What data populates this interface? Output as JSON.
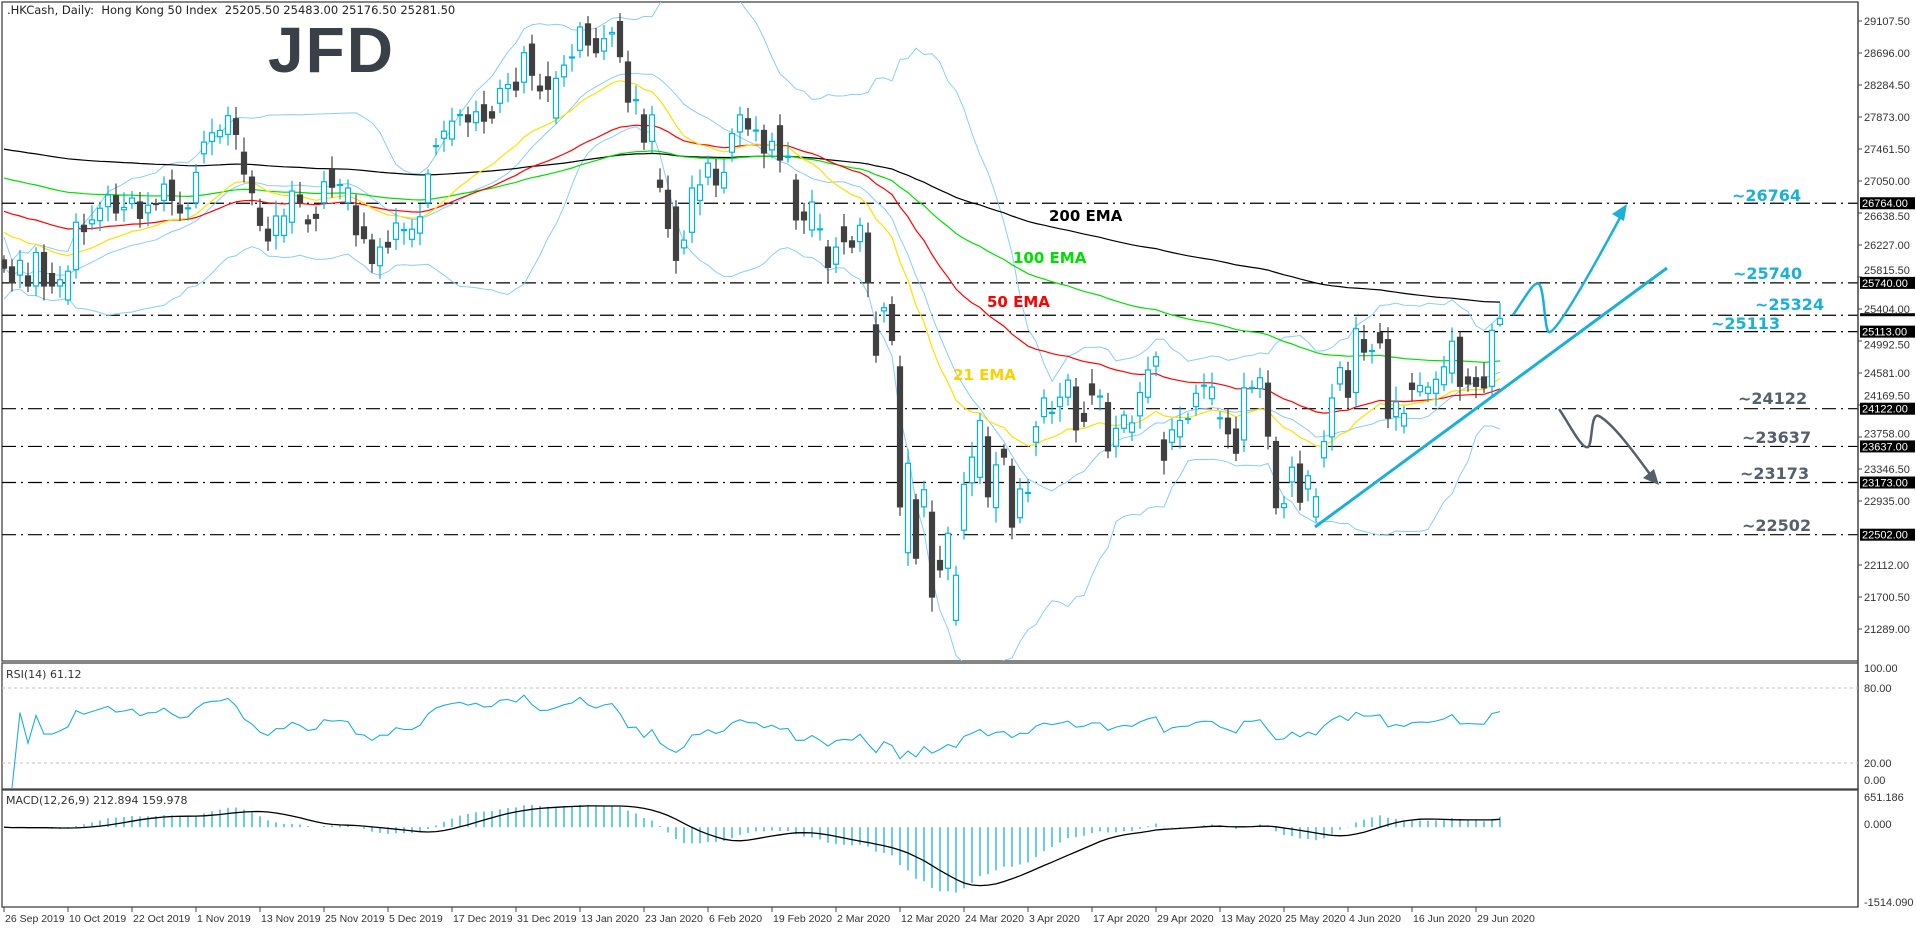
{
  "header": {
    "symbol": ".HKCash, Daily:",
    "instrument": "Hong Kong 50 Index",
    "ohlc": "25205.50 25483.00 25176.50 25281.50"
  },
  "logo": {
    "text": "JFD"
  },
  "colors": {
    "bull": "#00b4e0",
    "bear": "#404040",
    "ema21": "#ffe000",
    "ema50": "#ff0000",
    "ema100": "#00e000",
    "ema200": "#000000",
    "bollinger": "#87cefa",
    "annotation_up": "#1ab0d8",
    "annotation_down": "#56606b",
    "rsi": "#1ab0d8",
    "macd_hist": "#1ab0d8",
    "macd_signal": "#000000"
  },
  "ema_labels": {
    "ema200": "200 EMA",
    "ema100": "100 EMA",
    "ema50": "50 EMA",
    "ema21": "21 EMA"
  },
  "levels": [
    {
      "value": 26764,
      "label": "~26764",
      "axis": "26764.00",
      "tone": "up"
    },
    {
      "value": 25740,
      "label": "~25740",
      "axis": "25740.00",
      "tone": "up"
    },
    {
      "value": 25324,
      "label": "~25324",
      "axis": "",
      "tone": "up"
    },
    {
      "value": 25113,
      "label": "~25113",
      "axis": "25113.00",
      "tone": "up"
    },
    {
      "value": 24122,
      "label": "~24122",
      "axis": "24122.00",
      "tone": "down"
    },
    {
      "value": 23637,
      "label": "~23637",
      "axis": "23637.00",
      "tone": "down"
    },
    {
      "value": 23173,
      "label": "~23173",
      "axis": "23173.00",
      "tone": "down"
    },
    {
      "value": 22502,
      "label": "~22502",
      "axis": "22502.00",
      "tone": "down"
    }
  ],
  "rsi": {
    "label": "RSI(14) 61.12",
    "ticks": [
      "100.00",
      "80.00",
      "20.00",
      "0.00"
    ]
  },
  "macd": {
    "label": "MACD(12,26,9) 212.894 159.978",
    "ticks": [
      "651.186",
      "0.000",
      "-1514.090"
    ]
  },
  "chart_data": {
    "type": "candlestick",
    "title": ".HKCash, Daily: Hong Kong 50 Index",
    "price_ticks": [
      29107.5,
      28696.0,
      28284.5,
      27873.0,
      27461.5,
      27050.0,
      26638.5,
      26227.0,
      25815.5,
      25404.0,
      24992.5,
      24581.0,
      24169.5,
      23758.0,
      23346.5,
      22935.0,
      22112.0,
      21700.5,
      21289.0
    ],
    "ylim": [
      21000,
      29300
    ],
    "date_ticks": [
      "26 Sep 2019",
      "10 Oct 2019",
      "22 Oct 2019",
      "1 Nov 2019",
      "13 Nov 2019",
      "25 Nov 2019",
      "5 Dec 2019",
      "17 Dec 2019",
      "31 Dec 2019",
      "13 Jan 2020",
      "23 Jan 2020",
      "6 Feb 2020",
      "19 Feb 2020",
      "2 Mar 2020",
      "12 Mar 2020",
      "24 Mar 2020",
      "3 Apr 2020",
      "17 Apr 2020",
      "29 Apr 2020",
      "13 May 2020",
      "25 May 2020",
      "4 Jun 2020",
      "16 Jun 2020",
      "29 Jun 2020"
    ],
    "date_tick_every_bars": 8,
    "last_bar": {
      "open": 25205.5,
      "high": 25483.0,
      "low": 25176.5,
      "close": 25281.5
    },
    "open_close": [
      [
        26035,
        25930
      ],
      [
        25945,
        25740
      ],
      [
        25840,
        26030
      ],
      [
        25830,
        25700
      ],
      [
        25700,
        26130
      ],
      [
        26130,
        25700
      ],
      [
        25860,
        25700
      ],
      [
        25700,
        25780
      ],
      [
        25520,
        25890
      ],
      [
        25910,
        26520
      ],
      [
        26480,
        26400
      ],
      [
        26500,
        26550
      ],
      [
        26540,
        26700
      ],
      [
        26720,
        26870
      ],
      [
        26860,
        26640
      ],
      [
        26680,
        26710
      ],
      [
        26760,
        26830
      ],
      [
        26780,
        26570
      ],
      [
        26640,
        26740
      ],
      [
        26760,
        26755
      ],
      [
        26800,
        27010
      ],
      [
        27060,
        26800
      ],
      [
        26740,
        26640
      ],
      [
        26700,
        26705
      ],
      [
        26770,
        27160
      ],
      [
        27400,
        27550
      ],
      [
        27560,
        27670
      ],
      [
        27620,
        27700
      ],
      [
        27650,
        27890
      ],
      [
        27850,
        27650
      ],
      [
        27420,
        27140
      ],
      [
        27100,
        26900
      ],
      [
        26700,
        26480
      ],
      [
        26430,
        26280
      ],
      [
        26350,
        26600
      ],
      [
        26350,
        26600
      ],
      [
        26520,
        26920
      ],
      [
        26870,
        26770
      ],
      [
        26550,
        26500
      ],
      [
        26620,
        26570
      ],
      [
        26770,
        27040
      ],
      [
        27190,
        26970
      ],
      [
        27000,
        27005
      ],
      [
        26770,
        26960
      ],
      [
        26730,
        26360
      ],
      [
        26460,
        26310
      ],
      [
        26290,
        25990
      ],
      [
        25960,
        26200
      ],
      [
        26260,
        26200
      ],
      [
        26300,
        26510
      ],
      [
        26420,
        26425
      ],
      [
        26300,
        26430
      ],
      [
        26380,
        26590
      ],
      [
        26770,
        27140
      ],
      [
        27500,
        27505
      ],
      [
        27600,
        27690
      ],
      [
        27590,
        27820
      ],
      [
        27900,
        27905
      ],
      [
        27900,
        27810
      ],
      [
        27800,
        27940
      ],
      [
        28030,
        27820
      ],
      [
        27940,
        27860
      ],
      [
        28050,
        28240
      ],
      [
        28240,
        28290
      ],
      [
        28320,
        28220
      ],
      [
        28320,
        28700
      ],
      [
        28810,
        28410
      ],
      [
        28270,
        28210
      ],
      [
        28390,
        28230
      ],
      [
        27860,
        28370
      ],
      [
        28390,
        28540
      ],
      [
        28640,
        28645
      ],
      [
        28730,
        29030
      ],
      [
        29070,
        28800
      ],
      [
        28880,
        28700
      ],
      [
        28720,
        28880
      ],
      [
        28940,
        28960
      ],
      [
        29100,
        28650
      ],
      [
        28580,
        28065
      ],
      [
        28090,
        28095
      ],
      [
        27900,
        27550
      ],
      [
        27560,
        27900
      ],
      [
        27060,
        26970
      ],
      [
        26930,
        26440
      ],
      [
        26715,
        26030
      ],
      [
        26190,
        26290
      ],
      [
        26390,
        26960
      ],
      [
        26800,
        27000
      ],
      [
        27100,
        27280
      ],
      [
        27200,
        27000
      ],
      [
        26960,
        27160
      ],
      [
        27420,
        27660
      ],
      [
        27680,
        27900
      ],
      [
        27850,
        27720
      ],
      [
        27700,
        27705
      ],
      [
        27700,
        27410
      ],
      [
        27450,
        27560
      ],
      [
        27760,
        27320
      ],
      [
        27360,
        27365
      ],
      [
        27060,
        26550
      ],
      [
        26650,
        26550
      ],
      [
        26420,
        26780
      ],
      [
        26430,
        26435
      ],
      [
        26200,
        25940
      ],
      [
        25980,
        26200
      ],
      [
        26460,
        26270
      ],
      [
        26280,
        26200
      ],
      [
        26270,
        26480
      ],
      [
        26380,
        25740
      ],
      [
        25200,
        24810
      ],
      [
        25380,
        25420
      ],
      [
        25460,
        25000
      ],
      [
        24660,
        22860
      ],
      [
        22270,
        23420
      ],
      [
        22950,
        22200
      ],
      [
        22860,
        23080
      ],
      [
        22790,
        21700
      ],
      [
        22170,
        22050
      ],
      [
        22070,
        22520
      ],
      [
        21400,
        21980
      ],
      [
        22560,
        23150
      ],
      [
        23170,
        23500
      ],
      [
        23240,
        23970
      ],
      [
        23760,
        22990
      ],
      [
        22850,
        23400
      ],
      [
        23600,
        23500
      ],
      [
        23380,
        22600
      ],
      [
        22720,
        23090
      ],
      [
        23040,
        23045
      ],
      [
        23690,
        23890
      ],
      [
        24020,
        24260
      ],
      [
        24070,
        24075
      ],
      [
        24150,
        24270
      ],
      [
        24270,
        24490
      ],
      [
        24400,
        23850
      ],
      [
        24060,
        23960
      ],
      [
        24440,
        24300
      ],
      [
        24280,
        24285
      ],
      [
        24200,
        23580
      ],
      [
        23640,
        23870
      ],
      [
        23870,
        24040
      ],
      [
        23820,
        23940
      ],
      [
        24030,
        24330
      ],
      [
        24270,
        24620
      ],
      [
        24670,
        24790
      ],
      [
        23720,
        23460
      ],
      [
        23690,
        23850
      ],
      [
        23760,
        23970
      ],
      [
        23990,
        23995
      ],
      [
        24150,
        24320
      ],
      [
        24420,
        24425
      ],
      [
        24250,
        24400
      ],
      [
        24000,
        24005
      ],
      [
        24000,
        23800
      ],
      [
        23860,
        23550
      ],
      [
        23720,
        24390
      ],
      [
        24390,
        24395
      ],
      [
        24380,
        24520
      ],
      [
        24450,
        23770
      ],
      [
        23700,
        22850
      ],
      [
        22850,
        22900
      ],
      [
        23180,
        23370
      ],
      [
        23410,
        22920
      ],
      [
        23090,
        23260
      ],
      [
        22730,
        22990
      ],
      [
        23490,
        23700
      ],
      [
        23760,
        24260
      ],
      [
        24440,
        24650
      ],
      [
        24610,
        24270
      ],
      [
        24330,
        25150
      ],
      [
        25010,
        24850
      ],
      [
        24865,
        24870
      ],
      [
        25100,
        24970
      ],
      [
        25010,
        24000
      ],
      [
        24020,
        24210
      ],
      [
        23900,
        24060
      ],
      [
        24450,
        24370
      ],
      [
        24340,
        24420
      ],
      [
        24320,
        24400
      ],
      [
        24320,
        24500
      ],
      [
        24430,
        24660
      ],
      [
        24580,
        24990
      ],
      [
        25040,
        24410
      ],
      [
        24530,
        24440
      ],
      [
        24520,
        24410
      ],
      [
        24530,
        24390
      ],
      [
        24410,
        25130
      ],
      [
        25205.5,
        25281.5
      ]
    ],
    "ema_start_values": {
      "ema21": 26390,
      "ema50": 26660,
      "ema100": 27090,
      "ema200": 27460
    },
    "rsi_levels": [
      80,
      20
    ],
    "macd_range": [
      -1514.09,
      651.186
    ]
  }
}
